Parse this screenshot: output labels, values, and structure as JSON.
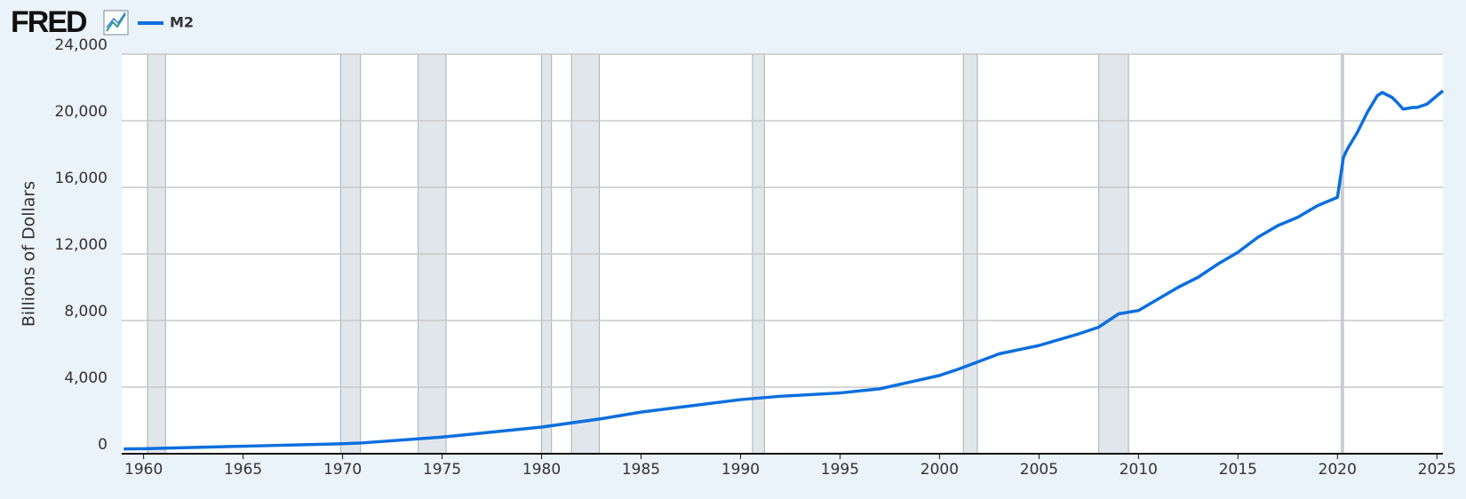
{
  "chart_data": {
    "type": "line",
    "logo": "FRED",
    "ylabel": "Billions of Dollars",
    "x": [
      1959,
      1960,
      1965,
      1970,
      1971,
      1975,
      1980,
      1983,
      1985,
      1987,
      1990,
      1992,
      1995,
      1997,
      2000,
      2001,
      2003,
      2005,
      2007,
      2008,
      2009,
      2010,
      2011,
      2012,
      2013,
      2014,
      2015,
      2016,
      2017,
      2018,
      2019,
      2020,
      2020.3,
      2020.5,
      2021,
      2021.5,
      2022,
      2022.25,
      2022.75,
      2023,
      2023.3,
      2023.8,
      2024,
      2024.5,
      2025,
      2025.3
    ],
    "series": [
      {
        "name": "M2",
        "color": "#0b6fde",
        "values": [
          287,
          300,
          450,
          600,
          650,
          1000,
          1600,
          2100,
          2500,
          2800,
          3250,
          3450,
          3650,
          3900,
          4700,
          5100,
          6000,
          6500,
          7200,
          7600,
          8400,
          8600,
          9300,
          10000,
          10600,
          11400,
          12100,
          13000,
          13700,
          14200,
          14900,
          15400,
          17800,
          18300,
          19300,
          20500,
          21500,
          21700,
          21400,
          21100,
          20700,
          20800,
          20800,
          21000,
          21500,
          21800
        ]
      }
    ],
    "recessions": [
      [
        1960.2,
        1961.1
      ],
      [
        1969.9,
        1970.9
      ],
      [
        1973.8,
        1975.2
      ],
      [
        1980.0,
        1980.5
      ],
      [
        1981.5,
        1982.9
      ],
      [
        1990.6,
        1991.2
      ],
      [
        2001.2,
        2001.9
      ],
      [
        2008.0,
        2009.5
      ],
      [
        2020.2,
        2020.3
      ]
    ],
    "xlim": [
      1958.9,
      2025.3
    ],
    "xticks": [
      1960,
      1965,
      1970,
      1975,
      1980,
      1985,
      1990,
      1995,
      2000,
      2005,
      2010,
      2015,
      2020,
      2025
    ],
    "ylim": [
      0,
      24000
    ],
    "yticks": [
      0,
      {
        "value": 4000,
        "label": "4,000"
      },
      {
        "value": 8000,
        "label": "8,000"
      },
      {
        "value": 12000,
        "label": "12,000"
      },
      {
        "value": 16000,
        "label": "16,000"
      },
      {
        "value": 20000,
        "label": "20,000"
      },
      {
        "value": 24000,
        "label": "24,000"
      }
    ],
    "grid": true
  }
}
